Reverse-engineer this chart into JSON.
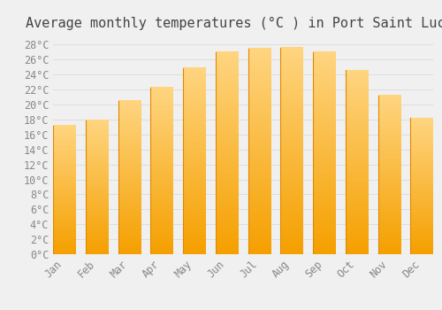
{
  "title": "Average monthly temperatures (°C ) in Port Saint Lucie",
  "months": [
    "Jan",
    "Feb",
    "Mar",
    "Apr",
    "May",
    "Jun",
    "Jul",
    "Aug",
    "Sep",
    "Oct",
    "Nov",
    "Dec"
  ],
  "values": [
    17.2,
    17.9,
    20.5,
    22.3,
    24.9,
    27.0,
    27.5,
    27.6,
    27.0,
    24.6,
    21.2,
    18.2
  ],
  "bar_color_top": "#FFD580",
  "bar_color_bottom": "#F5A000",
  "bar_color_left_edge": "#FFCC55",
  "ylim": [
    0,
    29
  ],
  "ytick_step": 2,
  "background_color": "#F0F0F0",
  "grid_color": "#DDDDDD",
  "title_fontsize": 11,
  "tick_fontsize": 8.5,
  "tick_label_color": "#888888",
  "title_color": "#444444",
  "bar_width": 0.7
}
